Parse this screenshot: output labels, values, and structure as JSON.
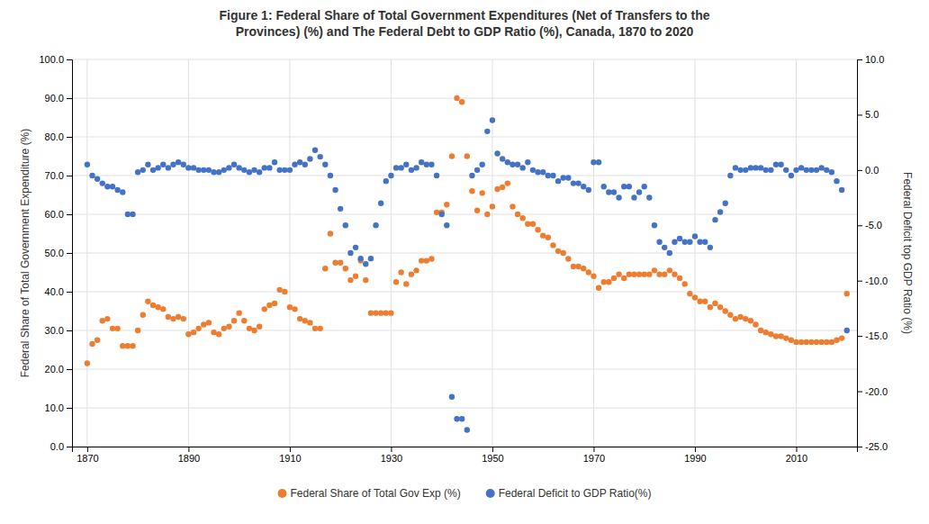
{
  "chart_data": {
    "type": "scatter",
    "title": "Figure 1: Federal Share of Total Government Expenditures (Net of Transfers to the\nProvinces) (%) and The Federal Debt to GDP Ratio (%), Canada, 1870 to 2020",
    "ylabel": "Federal Share of Total Government Expenditure (%)",
    "y2label": "Federal Deficit top GDP Ratio (%)",
    "xlim": [
      1867,
      2022
    ],
    "xticks": [
      1870,
      1890,
      1910,
      1930,
      1950,
      1970,
      1990,
      2010
    ],
    "ylim": [
      0.0,
      100.0
    ],
    "yticks": [
      {
        "value": 0.0,
        "label": "0.0"
      },
      {
        "value": 10.0,
        "label": "10.0"
      },
      {
        "value": 20.0,
        "label": "20.0"
      },
      {
        "value": 30.0,
        "label": "30.0"
      },
      {
        "value": 40.0,
        "label": "40.0"
      },
      {
        "value": 50.0,
        "label": "50.0"
      },
      {
        "value": 60.0,
        "label": "60.0"
      },
      {
        "value": 70.0,
        "label": "70.0"
      },
      {
        "value": 80.0,
        "label": "80.0"
      },
      {
        "value": 90.0,
        "label": "90.0"
      },
      {
        "value": 100.0,
        "label": "100.0"
      }
    ],
    "y2lim": [
      -25.0,
      10.0
    ],
    "y2ticks": [
      {
        "value": 10.0,
        "label": "10.0"
      },
      {
        "value": 5.0,
        "label": "5.0"
      },
      {
        "value": 0.0,
        "label": "0.0"
      },
      {
        "value": -5.0,
        "label": "-5.0"
      },
      {
        "value": -10.0,
        "label": "-10.0"
      },
      {
        "value": -15.0,
        "label": "-15.0"
      },
      {
        "value": -20.0,
        "label": "-20.0"
      },
      {
        "value": -25.0,
        "label": "-25.0"
      }
    ],
    "grid": true,
    "legend": "bottom",
    "x": [
      1870,
      1871,
      1872,
      1873,
      1874,
      1875,
      1876,
      1877,
      1878,
      1879,
      1880,
      1881,
      1882,
      1883,
      1884,
      1885,
      1886,
      1887,
      1888,
      1889,
      1890,
      1891,
      1892,
      1893,
      1894,
      1895,
      1896,
      1897,
      1898,
      1899,
      1900,
      1901,
      1902,
      1903,
      1904,
      1905,
      1906,
      1907,
      1908,
      1909,
      1910,
      1911,
      1912,
      1913,
      1914,
      1915,
      1916,
      1917,
      1918,
      1919,
      1920,
      1921,
      1922,
      1923,
      1924,
      1925,
      1926,
      1927,
      1928,
      1929,
      1930,
      1931,
      1932,
      1933,
      1934,
      1935,
      1936,
      1937,
      1938,
      1939,
      1940,
      1941,
      1942,
      1943,
      1944,
      1945,
      1946,
      1947,
      1948,
      1949,
      1950,
      1951,
      1952,
      1953,
      1954,
      1955,
      1956,
      1957,
      1958,
      1959,
      1960,
      1961,
      1962,
      1963,
      1964,
      1965,
      1966,
      1967,
      1968,
      1969,
      1970,
      1971,
      1972,
      1973,
      1974,
      1975,
      1976,
      1977,
      1978,
      1979,
      1980,
      1981,
      1982,
      1983,
      1984,
      1985,
      1986,
      1987,
      1988,
      1989,
      1990,
      1991,
      1992,
      1993,
      1994,
      1995,
      1996,
      1997,
      1998,
      1999,
      2000,
      2001,
      2002,
      2003,
      2004,
      2005,
      2006,
      2007,
      2008,
      2009,
      2010,
      2011,
      2012,
      2013,
      2014,
      2015,
      2016,
      2017,
      2018,
      2019,
      2020
    ],
    "series": [
      {
        "name": "Federal Share of Total Gov Exp (%)",
        "color": "#ED7D31",
        "values": [
          21.5,
          26.5,
          27.5,
          32.5,
          33.0,
          30.5,
          30.5,
          26.0,
          26.0,
          26.0,
          30.0,
          34.0,
          37.5,
          36.5,
          36.0,
          35.5,
          33.5,
          33.0,
          33.5,
          33.0,
          29.0,
          29.5,
          30.5,
          31.5,
          32.0,
          29.5,
          29.0,
          30.5,
          31.0,
          32.5,
          34.5,
          32.5,
          30.5,
          30.0,
          31.0,
          35.5,
          36.5,
          37.0,
          40.5,
          40.0,
          36.0,
          35.5,
          33.0,
          32.5,
          32.0,
          30.5,
          30.5,
          46.0,
          55.0,
          47.5,
          47.5,
          46.0,
          43.0,
          44.0,
          48.0,
          43.0,
          34.5,
          34.5,
          34.5,
          34.5,
          34.5,
          42.5,
          45.0,
          42.0,
          44.5,
          45.5,
          48.0,
          48.0,
          48.5,
          60.5,
          60.5,
          62.5,
          75.0,
          90.0,
          89.0,
          75.0,
          66.0,
          61.0,
          65.5,
          60.0,
          62.0,
          66.5,
          67.0,
          68.0,
          62.0,
          60.0,
          59.0,
          57.5,
          57.5,
          56.0,
          54.5,
          54.0,
          52.0,
          50.5,
          50.0,
          48.5,
          46.5,
          46.5,
          46.0,
          45.0,
          44.0,
          41.0,
          42.5,
          42.5,
          43.5,
          44.5,
          43.5,
          44.5,
          44.5,
          44.5,
          44.5,
          44.5,
          45.5,
          44.5,
          44.5,
          45.5,
          44.5,
          43.5,
          42.0,
          39.5,
          38.5,
          37.5,
          37.5,
          36.0,
          37.0,
          36.0,
          35.0,
          34.0,
          33.0,
          33.5,
          33.0,
          32.5,
          31.5,
          30.0,
          29.5,
          29.0,
          28.5,
          28.5,
          28.0,
          27.5,
          27.0,
          27.0,
          27.0,
          27.0,
          27.0,
          27.0,
          27.0,
          27.0,
          27.5,
          28.0,
          39.5
        ]
      },
      {
        "name": "Federal Deficit to GDP Ratio(%)",
        "color": "#4472C4",
        "axis": "y2",
        "values": [
          0.5,
          -0.5,
          -0.8,
          -1.2,
          -1.5,
          -1.5,
          -1.8,
          -2.0,
          -4.0,
          -4.0,
          -0.2,
          0.0,
          0.5,
          0.0,
          0.2,
          0.5,
          0.2,
          0.5,
          0.7,
          0.5,
          0.2,
          0.2,
          0.0,
          0.0,
          0.0,
          -0.2,
          -0.2,
          0.0,
          0.2,
          0.5,
          0.2,
          0.0,
          -0.2,
          0.0,
          -0.2,
          0.2,
          0.2,
          0.7,
          0.0,
          0.0,
          0.0,
          0.5,
          0.7,
          0.5,
          1.0,
          1.8,
          1.2,
          0.5,
          -0.5,
          -1.8,
          -3.5,
          -5.0,
          -7.5,
          -7.0,
          -8.0,
          -8.5,
          -8.0,
          -5.0,
          -3.0,
          -1.0,
          -0.5,
          0.2,
          0.2,
          0.5,
          0.0,
          0.2,
          0.7,
          0.5,
          0.5,
          -0.5,
          -4.0,
          -5.0,
          -20.5,
          -22.5,
          -22.5,
          -23.5,
          -0.5,
          0.0,
          0.5,
          3.5,
          4.5,
          1.5,
          1.0,
          0.7,
          0.5,
          0.5,
          0.2,
          0.7,
          0.0,
          -0.2,
          -0.2,
          -0.5,
          -0.5,
          -1.0,
          -0.7,
          -0.7,
          -1.2,
          -1.2,
          -1.5,
          -1.8,
          0.7,
          0.7,
          -1.5,
          -2.0,
          -2.0,
          -2.5,
          -1.5,
          -1.5,
          -2.5,
          -2.0,
          -1.5,
          -2.5,
          -5.0,
          -6.5,
          -7.0,
          -7.5,
          -6.5,
          -6.2,
          -6.5,
          -6.5,
          -6.0,
          -6.5,
          -6.5,
          -7.0,
          -4.5,
          -3.8,
          -3.0,
          -0.5,
          0.2,
          0.0,
          0.0,
          0.2,
          0.2,
          0.2,
          0.0,
          0.0,
          0.5,
          0.5,
          0.0,
          -0.5,
          0.0,
          0.2,
          0.0,
          0.0,
          0.0,
          0.2,
          0.0,
          -0.2,
          -1.0,
          -1.8,
          -14.5
        ]
      }
    ]
  }
}
